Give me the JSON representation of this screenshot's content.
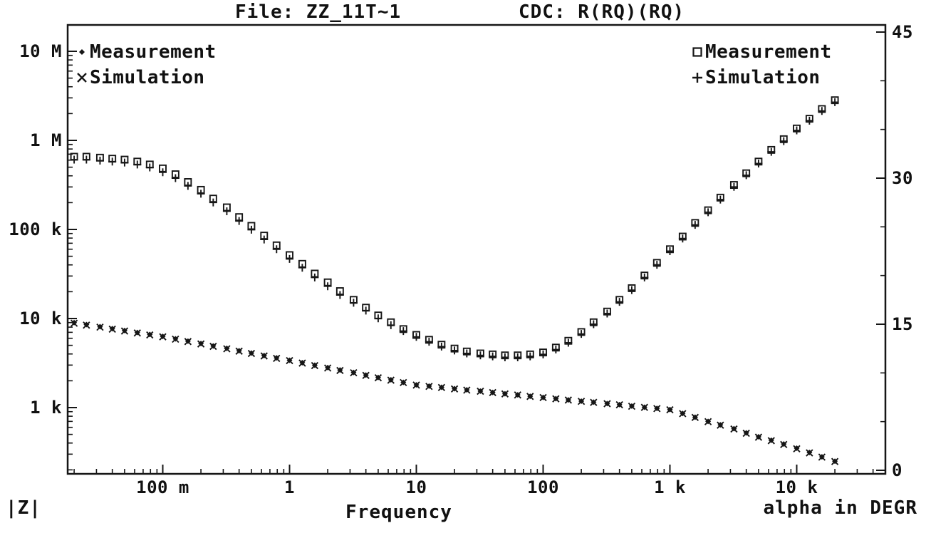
{
  "window": {
    "background": "#ffffff",
    "foreground": "#111111"
  },
  "header": {
    "file_label": "File: ZZ_11T~1",
    "cdc_label": "CDC: R(RQ)(RQ)"
  },
  "axes": {
    "x": {
      "caption": "Frequency",
      "scale": "log",
      "tick_labels": [
        "100 m",
        "1",
        "10",
        "100",
        "1 k",
        "10 k"
      ],
      "tick_logs": [
        -1,
        0,
        1,
        2,
        3,
        4
      ]
    },
    "y_left": {
      "caption": "|Z|",
      "scale": "log",
      "tick_labels": [
        "10 M",
        "1 M",
        "100 k",
        "10 k",
        "1 k"
      ],
      "tick_logs": [
        7,
        6,
        5,
        4,
        3
      ]
    },
    "y_right": {
      "caption": "alpha in DEGR",
      "scale": "linear",
      "tick_labels": [
        "45",
        "30",
        "15",
        "0"
      ],
      "tick_values": [
        45,
        30,
        15,
        0
      ]
    }
  },
  "legend_left": {
    "items": [
      {
        "marker": "diamond",
        "label": "Measurement"
      },
      {
        "marker": "x",
        "label": "Simulation"
      }
    ]
  },
  "legend_right": {
    "items": [
      {
        "marker": "square",
        "label": "Measurement"
      },
      {
        "marker": "plus",
        "label": "Simulation"
      }
    ]
  },
  "chart_data": {
    "type": "scatter",
    "title": "File: ZZ_11T~1   CDC: R(RQ)(RQ)",
    "xlabel": "Frequency",
    "x_scale": "log",
    "x_range_hz": [
      0.02,
      20000
    ],
    "y_left_label": "|Z|",
    "y_left_scale": "log",
    "y_left_range": [
      180,
      20000000
    ],
    "y_right_label": "alpha in DEGR",
    "y_right_range_deg": [
      0,
      45
    ],
    "grid": false,
    "legend_position": "top-left and top-right inside plot",
    "x_hz": [
      0.02,
      0.025,
      0.032,
      0.04,
      0.05,
      0.063,
      0.079,
      0.1,
      0.126,
      0.158,
      0.2,
      0.25,
      0.32,
      0.4,
      0.5,
      0.63,
      0.79,
      1,
      1.26,
      1.58,
      2,
      2.5,
      3.2,
      4,
      5,
      6.3,
      7.9,
      10,
      12.6,
      15.8,
      20,
      25,
      32,
      40,
      50,
      63,
      79,
      100,
      126,
      158,
      200,
      250,
      320,
      400,
      500,
      630,
      790,
      1000,
      1260,
      1580,
      2000,
      2500,
      3200,
      4000,
      5000,
      6300,
      7900,
      10000,
      12600,
      15800,
      20000
    ],
    "series": [
      {
        "name": "|Z| Measurement (ohm)",
        "axis": "left",
        "marker": "diamond",
        "values": [
          9000,
          8550,
          8100,
          7700,
          7320,
          6960,
          6620,
          6300,
          5920,
          5570,
          5230,
          4920,
          4620,
          4350,
          4090,
          3840,
          3610,
          3400,
          3190,
          2990,
          2810,
          2640,
          2480,
          2320,
          2180,
          2050,
          1920,
          1800,
          1740,
          1690,
          1630,
          1580,
          1530,
          1480,
          1430,
          1390,
          1340,
          1300,
          1260,
          1220,
          1180,
          1150,
          1110,
          1080,
          1040,
          1010,
          980,
          950,
          860,
          780,
          700,
          640,
          580,
          520,
          470,
          430,
          390,
          350,
          313,
          280,
          250
        ]
      },
      {
        "name": "|Z| Simulation (ohm)",
        "axis": "left",
        "marker": "x",
        "values": [
          8850,
          8420,
          8000,
          7600,
          7230,
          6880,
          6540,
          6230,
          5860,
          5510,
          5180,
          4870,
          4570,
          4300,
          4050,
          3800,
          3570,
          3370,
          3160,
          2960,
          2780,
          2610,
          2460,
          2300,
          2160,
          2030,
          1910,
          1790,
          1730,
          1680,
          1620,
          1570,
          1525,
          1475,
          1425,
          1385,
          1335,
          1295,
          1255,
          1215,
          1175,
          1145,
          1105,
          1075,
          1035,
          1005,
          975,
          945,
          855,
          775,
          695,
          635,
          575,
          515,
          465,
          425,
          385,
          345,
          310,
          278,
          248
        ]
      },
      {
        "name": "alpha Measurement (deg)",
        "axis": "right",
        "marker": "square",
        "values": [
          32.2,
          32.2,
          32.1,
          32.0,
          31.9,
          31.7,
          31.4,
          31.0,
          30.4,
          29.6,
          28.8,
          27.9,
          27.0,
          26.0,
          25.1,
          24.1,
          23.1,
          22.1,
          21.2,
          20.2,
          19.3,
          18.4,
          17.5,
          16.7,
          15.9,
          15.2,
          14.5,
          13.9,
          13.4,
          12.9,
          12.5,
          12.2,
          12.0,
          11.9,
          11.8,
          11.8,
          11.9,
          12.1,
          12.6,
          13.3,
          14.2,
          15.2,
          16.3,
          17.5,
          18.7,
          20.0,
          21.3,
          22.7,
          24.0,
          25.4,
          26.7,
          28.0,
          29.3,
          30.5,
          31.7,
          32.9,
          34.0,
          35.1,
          36.1,
          37.1,
          38.0
        ]
      },
      {
        "name": "alpha Simulation (deg)",
        "axis": "right",
        "marker": "plus",
        "values": [
          31.9,
          31.9,
          31.8,
          31.7,
          31.6,
          31.4,
          31.1,
          30.6,
          30.0,
          29.2,
          28.4,
          27.5,
          26.6,
          25.6,
          24.7,
          23.7,
          22.7,
          21.7,
          20.8,
          19.8,
          18.9,
          18.0,
          17.2,
          16.4,
          15.6,
          14.9,
          14.3,
          13.7,
          13.2,
          12.7,
          12.3,
          12.0,
          11.8,
          11.7,
          11.6,
          11.6,
          11.7,
          11.9,
          12.4,
          13.1,
          14.0,
          15.0,
          16.1,
          17.3,
          18.5,
          19.8,
          21.1,
          22.5,
          23.8,
          25.2,
          26.5,
          27.8,
          29.1,
          30.3,
          31.5,
          32.7,
          33.8,
          34.9,
          35.9,
          36.9,
          37.8
        ]
      }
    ]
  }
}
